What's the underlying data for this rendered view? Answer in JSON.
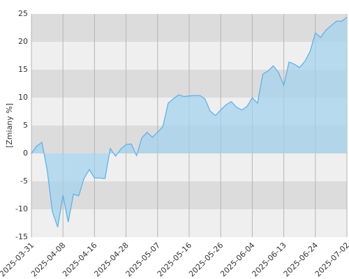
{
  "chart_data": {
    "type": "area",
    "y_label": "[Zmiany %]",
    "categories": [
      "2025-03-31",
      null,
      null,
      null,
      null,
      null,
      "2025-04-08",
      null,
      null,
      null,
      null,
      null,
      "2025-04-16",
      null,
      null,
      null,
      null,
      null,
      "2025-04-28",
      null,
      null,
      null,
      null,
      null,
      "2025-05-07",
      null,
      null,
      null,
      null,
      null,
      "2025-05-16",
      null,
      null,
      null,
      null,
      null,
      "2025-05-26",
      null,
      null,
      null,
      null,
      null,
      "2025-06-04",
      null,
      null,
      null,
      null,
      null,
      "2025-06-13",
      null,
      null,
      null,
      null,
      null,
      "2025-06-24",
      null,
      null,
      null,
      null,
      null,
      "2025-07-02"
    ],
    "values": [
      0,
      1.3,
      2,
      -3,
      -10.5,
      -13.2,
      -7.5,
      -12.3,
      -7.3,
      -7.6,
      -4.5,
      -2.9,
      -4.4,
      -4.4,
      -4.5,
      0.9,
      -0.5,
      0.8,
      1.6,
      1.7,
      -0.4,
      2.8,
      3.8,
      2.9,
      3.8,
      4.8,
      9,
      9.8,
      10.5,
      10.2,
      10.3,
      10.4,
      10.4,
      9.8,
      7.6,
      6.8,
      7.8,
      8.7,
      9.3,
      8.3,
      7.8,
      8.4,
      10,
      9,
      14.2,
      14.8,
      15.7,
      14.5,
      12.2,
      16.4,
      16,
      15.4,
      16.5,
      18.3,
      21.6,
      20.8,
      22.1,
      22.9,
      23.7,
      23.7,
      24.4
    ],
    "color": "#5aaee8",
    "ylim": [
      -15,
      25
    ],
    "yticks": [
      -15,
      -10,
      -5,
      0,
      5,
      10,
      15,
      20,
      25
    ],
    "grid": true
  }
}
